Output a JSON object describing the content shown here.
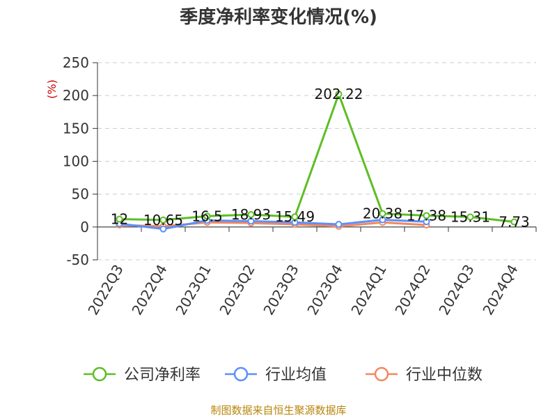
{
  "chart_data": {
    "type": "line",
    "title": "季度净利率变化情况(%)",
    "ylabel": "(%)",
    "categories": [
      "2022Q3",
      "2022Q4",
      "2023Q1",
      "2023Q2",
      "2023Q3",
      "2023Q4",
      "2024Q1",
      "2024Q2",
      "2024Q3",
      "2024Q4"
    ],
    "yticks": [
      250,
      200,
      150,
      100,
      50,
      0,
      -50
    ],
    "ylim": [
      -50,
      250
    ],
    "grid": true,
    "legend_position": "bottom",
    "series": [
      {
        "name": "公司净利率",
        "color": "#5dbe24",
        "values": [
          12,
          10.65,
          16.5,
          18.93,
          15.49,
          202.22,
          20.38,
          17.38,
          15.31,
          7.73
        ],
        "labels": [
          "12",
          "10.65",
          "16.5",
          "18.93",
          "15.49",
          "202.22",
          "20.38",
          "17.38",
          "15.31",
          "7.73"
        ]
      },
      {
        "name": "行业均值",
        "color": "#5b8ff9",
        "values": [
          5,
          -3,
          10,
          9,
          7,
          4,
          11,
          8,
          null,
          null
        ]
      },
      {
        "name": "行业中位数",
        "color": "#f4875f",
        "values": [
          3,
          1,
          7,
          6,
          4,
          1,
          7,
          3,
          null,
          null
        ]
      }
    ],
    "source": "制图数据来自恒生聚源数据库"
  }
}
